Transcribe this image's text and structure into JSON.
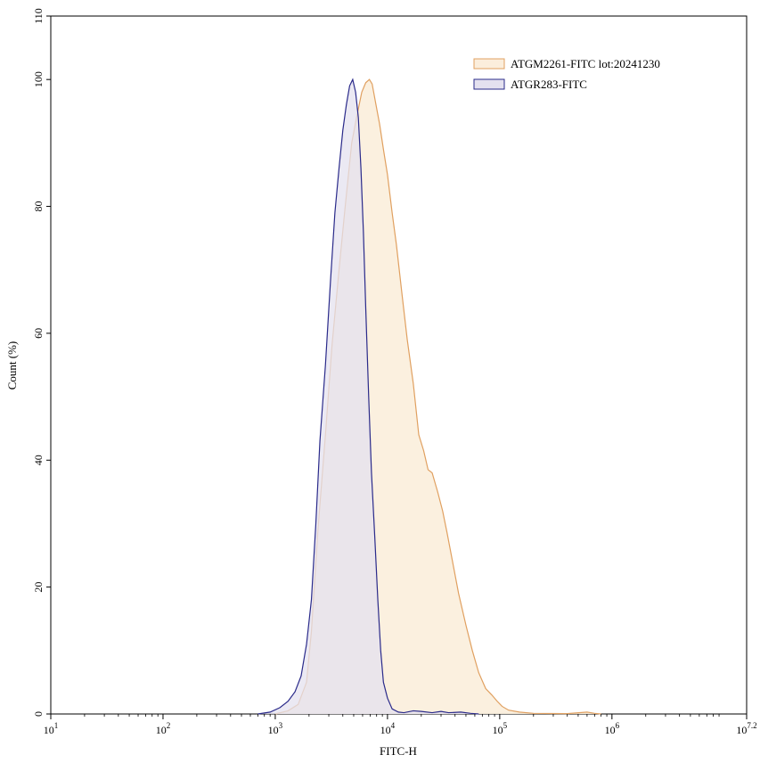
{
  "chart_data": {
    "type": "area",
    "xlabel": "FITC-H",
    "ylabel": "Count  (%)",
    "x_scale": "log",
    "xlim": [
      10,
      15848931.92
    ],
    "ylim": [
      0,
      110
    ],
    "x_ticks": [
      {
        "value": 10,
        "base": "10",
        "exp": "1"
      },
      {
        "value": 100,
        "base": "10",
        "exp": "2"
      },
      {
        "value": 1000,
        "base": "10",
        "exp": "3"
      },
      {
        "value": 10000,
        "base": "10",
        "exp": "4"
      },
      {
        "value": 100000,
        "base": "10",
        "exp": "5"
      },
      {
        "value": 1000000,
        "base": "10",
        "exp": "6"
      },
      {
        "value": 15848931.92,
        "base": "10",
        "exp": "7.2"
      }
    ],
    "y_ticks": [
      0,
      20,
      40,
      60,
      80,
      100,
      110
    ],
    "grid": false,
    "legend_position": "top-right",
    "series": [
      {
        "name": "ATGM2261-FITC  lot:20241230",
        "stroke": "#e0a060",
        "fill": "#fbeedc",
        "x": [
          1000,
          1300,
          1600,
          1900,
          2100,
          2400,
          2800,
          3200,
          3700,
          4200,
          4800,
          5300,
          5900,
          6400,
          6900,
          7300,
          7900,
          8500,
          9200,
          10000,
          11000,
          12000,
          13500,
          15000,
          17000,
          19000,
          21000,
          23000,
          25000,
          28000,
          31000,
          34000,
          38000,
          43000,
          50000,
          57000,
          65000,
          75000,
          85000,
          95000,
          105000,
          120000,
          150000,
          200000,
          400000,
          600000,
          700000,
          800000
        ],
        "y": [
          0,
          0.5,
          1.5,
          5,
          13,
          29,
          44,
          58,
          70,
          80,
          90,
          94,
          98,
          99.5,
          100,
          99.3,
          96,
          93,
          89,
          85,
          79,
          74,
          66,
          59,
          52,
          44,
          41.5,
          38.5,
          38,
          35,
          32,
          28.5,
          24,
          19,
          14,
          10,
          6.5,
          4,
          3,
          2,
          1.2,
          0.6,
          0.3,
          0.1,
          0.05,
          0.3,
          0.1,
          0
        ]
      },
      {
        "name": "ATGR283-FITC",
        "stroke": "#2a2a8a",
        "fill": "#e4e1ef",
        "x": [
          700,
          900,
          1100,
          1300,
          1500,
          1700,
          1900,
          2100,
          2300,
          2500,
          2800,
          3100,
          3400,
          3700,
          4000,
          4300,
          4600,
          4900,
          5200,
          5500,
          5800,
          6100,
          6400,
          6800,
          7200,
          7700,
          8200,
          8700,
          9200,
          10000,
          11000,
          12500,
          14000,
          17000,
          20000,
          25000,
          30000,
          35000,
          45000,
          55000,
          65000
        ],
        "y": [
          0,
          0.3,
          1,
          2,
          3.5,
          6,
          11,
          18,
          30,
          43,
          55,
          68,
          79,
          86,
          92,
          96,
          99,
          100,
          98,
          94,
          86,
          76,
          64,
          50,
          38,
          28,
          18,
          10,
          5,
          2.5,
          0.8,
          0.3,
          0.2,
          0.5,
          0.4,
          0.2,
          0.4,
          0.2,
          0.3,
          0.1,
          0
        ]
      }
    ]
  }
}
